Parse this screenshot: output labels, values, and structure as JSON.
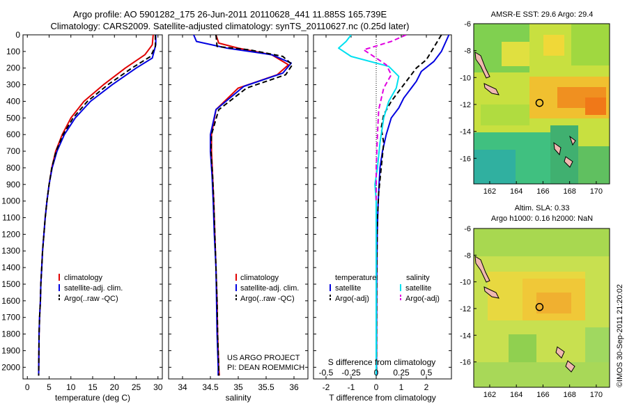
{
  "header": {
    "title_line1": "Argo profile: AO 5901282_175 26-Jun-2011 20110628_441 11.885S 165.739E",
    "title_line2": "Climatology: CARS2009. Satellite-adjusted climatology: synTS_20110627.nc (0.25d later)"
  },
  "colors": {
    "climatology": "#e00000",
    "satellite": "#0000e0",
    "argo": "#000000",
    "salinity_sat": "#00e0f0",
    "salinity_argo": "#e000e0"
  },
  "chart_data": [
    {
      "type": "line",
      "xlabel": "temperature (deg C)",
      "ylim": [
        2070,
        0
      ],
      "xlim": [
        -1,
        31
      ],
      "x_ticks": [
        0,
        5,
        10,
        15,
        20,
        25,
        30
      ],
      "y_ticks": [
        0,
        100,
        200,
        300,
        400,
        500,
        600,
        700,
        800,
        900,
        1000,
        1100,
        1200,
        1300,
        1400,
        1500,
        1600,
        1700,
        1800,
        1900,
        2000
      ],
      "legend": [
        "climatology",
        "satellite-adj. clim.",
        "Argo(..raw -QC)"
      ],
      "legend_position": "bottom-center",
      "series": [
        {
          "name": "climatology",
          "x": [
            28.9,
            28.7,
            27.0,
            22.5,
            17.5,
            13.0,
            10.0,
            8.0,
            6.5,
            5.6,
            5.0,
            4.5,
            4.1,
            3.8,
            3.5,
            3.3,
            3.1,
            3.0,
            2.8,
            2.7,
            2.6
          ],
          "y": [
            0,
            60,
            120,
            200,
            300,
            400,
            500,
            600,
            700,
            800,
            900,
            1000,
            1100,
            1200,
            1300,
            1400,
            1500,
            1600,
            1700,
            1800,
            2050
          ]
        },
        {
          "name": "satellite-adj. clim.",
          "x": [
            29.5,
            29.5,
            28.7,
            25.0,
            19.5,
            14.5,
            11.0,
            8.5,
            6.8,
            5.7,
            5.0,
            4.5,
            4.1,
            3.8,
            3.5,
            3.3,
            3.1,
            3.0,
            2.8,
            2.7,
            2.6
          ],
          "y": [
            0,
            60,
            140,
            200,
            300,
            400,
            500,
            600,
            700,
            800,
            900,
            1000,
            1100,
            1200,
            1300,
            1400,
            1500,
            1600,
            1700,
            1800,
            2050
          ]
        },
        {
          "name": "Argo(..raw -QC)",
          "x": [
            29.4,
            29.4,
            28.3,
            24.0,
            18.5,
            13.8,
            10.5,
            8.2,
            6.6,
            5.6,
            5.0,
            4.5,
            4.1,
            3.8,
            3.5,
            3.3,
            3.1,
            3.0,
            2.8,
            2.7,
            2.6
          ],
          "y": [
            0,
            70,
            130,
            200,
            300,
            400,
            500,
            600,
            700,
            800,
            900,
            1000,
            1100,
            1200,
            1300,
            1400,
            1500,
            1600,
            1700,
            1800,
            2050
          ]
        }
      ]
    },
    {
      "type": "line",
      "xlabel": "salinity",
      "xlim": [
        33.75,
        36.25
      ],
      "ylim": [
        2070,
        0
      ],
      "x_ticks": [
        34,
        34.5,
        35,
        35.5,
        36
      ],
      "legend": [
        "climatology",
        "satellite-adj. clim.",
        "Argo(..raw -QC)"
      ],
      "legend_position": "bottom-center",
      "annotation_line1": "US ARGO PROJECT",
      "annotation_line2": "PI: DEAN ROEMMICH",
      "series": [
        {
          "name": "climatology",
          "x": [
            34.6,
            34.65,
            35.0,
            35.6,
            35.9,
            35.7,
            35.0,
            34.6,
            34.52,
            34.52,
            34.54,
            34.56,
            34.58,
            34.6,
            34.62,
            34.63,
            34.64,
            34.65,
            34.66
          ],
          "y": [
            0,
            50,
            80,
            120,
            180,
            240,
            320,
            450,
            600,
            700,
            850,
            1000,
            1200,
            1400,
            1600,
            1800,
            1900,
            2000,
            2050
          ]
        },
        {
          "name": "satellite-adj. clim.",
          "x": [
            34.2,
            34.25,
            34.8,
            35.6,
            35.95,
            35.8,
            35.1,
            34.6,
            34.5,
            34.5,
            34.53,
            34.55,
            34.57,
            34.6,
            34.61,
            34.62,
            34.63,
            34.64,
            34.64
          ],
          "y": [
            0,
            40,
            80,
            120,
            170,
            230,
            310,
            450,
            600,
            700,
            850,
            1000,
            1200,
            1400,
            1600,
            1800,
            1900,
            2000,
            2050
          ]
        },
        {
          "name": "Argo(..raw -QC)",
          "x": [
            34.6,
            34.62,
            35.2,
            35.8,
            35.97,
            35.85,
            35.15,
            34.65,
            34.52,
            34.51,
            34.54,
            34.56,
            34.58,
            34.6,
            34.62,
            34.63,
            34.64,
            34.65,
            34.65
          ],
          "y": [
            0,
            70,
            90,
            130,
            180,
            240,
            320,
            450,
            600,
            700,
            850,
            1000,
            1200,
            1400,
            1600,
            1800,
            1900,
            2000,
            2050
          ]
        }
      ]
    },
    {
      "type": "line",
      "xlabel": "T difference from climatology",
      "x2label": "S difference from climatology",
      "xlim": [
        -2.5,
        3.0
      ],
      "ylim": [
        2070,
        0
      ],
      "x_ticks": [
        -2,
        -1,
        0,
        1,
        2
      ],
      "x2_ticks": [
        "-0.5",
        "-0.25",
        "0",
        "0.25",
        "0.5"
      ],
      "x2_tick_values": [
        -2,
        -1,
        0,
        1,
        2
      ],
      "legend_headers": [
        "temperature",
        "salinity"
      ],
      "legend": [
        "satellite",
        "Argo(-adj)",
        "satellite",
        "Argo(-adj)"
      ],
      "legend_position": "bottom-center",
      "series": [
        {
          "name": "satellite",
          "x": [
            2.9,
            2.6,
            2.3,
            1.8,
            1.6,
            1.4,
            1.1,
            0.9,
            0.6,
            0.4,
            0.25,
            0.15,
            0.08,
            0.04,
            0.02,
            0.01
          ],
          "y": [
            0,
            100,
            160,
            220,
            280,
            320,
            380,
            440,
            500,
            600,
            700,
            800,
            1000,
            1200,
            1500,
            2050
          ]
        },
        {
          "name": "Argo(-adj)",
          "x": [
            2.6,
            2.2,
            2.0,
            1.6,
            1.2,
            0.9,
            0.6,
            0.3,
            0.2,
            0.3,
            0.2,
            0.1,
            0.05,
            0.03,
            0.02,
            0.01
          ],
          "y": [
            0,
            100,
            150,
            200,
            280,
            340,
            400,
            480,
            560,
            650,
            800,
            950,
            1100,
            1300,
            1500,
            2050
          ]
        },
        {
          "name": "satellite",
          "x": [
            -1.0,
            -1.2,
            -1.5,
            -1.0,
            0.5,
            0.9,
            0.8,
            0.5,
            0.3,
            0.15,
            0.05,
            -0.05,
            0.0,
            0.0,
            0.0,
            0.0
          ],
          "y": [
            0,
            40,
            80,
            130,
            190,
            250,
            320,
            400,
            500,
            650,
            800,
            900,
            1000,
            1300,
            1600,
            2050
          ]
        },
        {
          "name": "Argo(-adj)",
          "x": [
            1.2,
            0.6,
            -0.5,
            -0.2,
            0.4,
            0.6,
            0.3,
            0.1,
            0.05,
            0.0,
            0.0
          ],
          "y": [
            0,
            40,
            90,
            120,
            180,
            240,
            320,
            450,
            600,
            800,
            1000
          ]
        }
      ]
    },
    {
      "type": "heatmap",
      "title": "AMSR-E SST: 29.6 Argo: 29.4",
      "x_ticks": [
        162,
        164,
        166,
        168,
        170
      ],
      "y_ticks": [
        -6,
        -8,
        -10,
        -12,
        -14,
        -16
      ],
      "xlim": [
        160.8,
        171
      ],
      "ylim": [
        -17.9,
        -6
      ],
      "marker": {
        "lon": 165.739,
        "lat": -11.885
      }
    },
    {
      "type": "heatmap",
      "title_line1": "Altim. SLA: 0.33",
      "title_line2": "Argo h1000: 0.16 h2000: NaN",
      "x_ticks": [
        162,
        164,
        166,
        168,
        170
      ],
      "y_ticks": [
        -6,
        -8,
        -10,
        -12,
        -14,
        -16
      ],
      "xlim": [
        160.8,
        171
      ],
      "ylim": [
        -17.9,
        -6
      ],
      "marker": {
        "lon": 165.739,
        "lat": -11.885
      }
    }
  ],
  "footer": {
    "credit": "©IMOS 30-Sep-2011 21:20:02"
  }
}
